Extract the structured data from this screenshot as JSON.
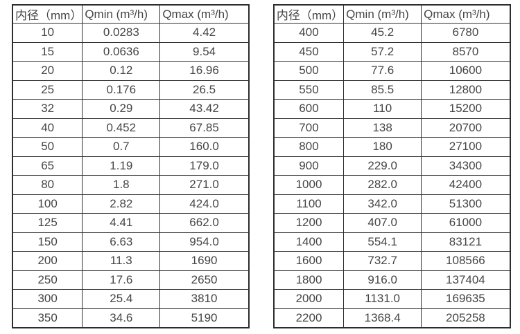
{
  "page": {
    "background": "#ffffff",
    "text_color": "#454545",
    "border_color": "#2d2d2d"
  },
  "tables": [
    {
      "name": "flow-table-small-diameters",
      "headers": [
        "内径（mm）",
        "Qmin (m³/h)",
        "Qmax (m³/h)"
      ],
      "rows": [
        [
          "10",
          "0.0283",
          "4.42"
        ],
        [
          "15",
          "0.0636",
          "9.54"
        ],
        [
          "20",
          "0.12",
          "16.96"
        ],
        [
          "25",
          "0.176",
          "26.5"
        ],
        [
          "32",
          "0.29",
          "43.42"
        ],
        [
          "40",
          "0.452",
          "67.85"
        ],
        [
          "50",
          "0.7",
          "160.0"
        ],
        [
          "65",
          "1.19",
          "179.0"
        ],
        [
          "80",
          "1.8",
          "271.0"
        ],
        [
          "100",
          "2.82",
          "424.0"
        ],
        [
          "125",
          "4.41",
          "662.0"
        ],
        [
          "150",
          "6.63",
          "954.0"
        ],
        [
          "200",
          "11.3",
          "1690"
        ],
        [
          "250",
          "17.6",
          "2650"
        ],
        [
          "300",
          "25.4",
          "3810"
        ],
        [
          "350",
          "34.6",
          "5190"
        ]
      ]
    },
    {
      "name": "flow-table-large-diameters",
      "headers": [
        "内径（mm）",
        "Qmin (m³/h)",
        "Qmax (m³/h)"
      ],
      "rows": [
        [
          "400",
          "45.2",
          "6780"
        ],
        [
          "450",
          "57.2",
          "8570"
        ],
        [
          "500",
          "77.6",
          "10600"
        ],
        [
          "550",
          "85.5",
          "12800"
        ],
        [
          "600",
          "110",
          "15200"
        ],
        [
          "700",
          "138",
          "20700"
        ],
        [
          "800",
          "180",
          "27100"
        ],
        [
          "900",
          "229.0",
          "34300"
        ],
        [
          "1000",
          "282.0",
          "42400"
        ],
        [
          "1100",
          "342.0",
          "51300"
        ],
        [
          "1200",
          "407.0",
          "61000"
        ],
        [
          "1400",
          "554.1",
          "83121"
        ],
        [
          "1600",
          "732.7",
          "108566"
        ],
        [
          "1800",
          "916.0",
          "137404"
        ],
        [
          "2000",
          "1131.0",
          "169635"
        ],
        [
          "2200",
          "1368.4",
          "205258"
        ]
      ]
    }
  ],
  "column_names": [
    "diameter",
    "qmin",
    "qmax"
  ]
}
